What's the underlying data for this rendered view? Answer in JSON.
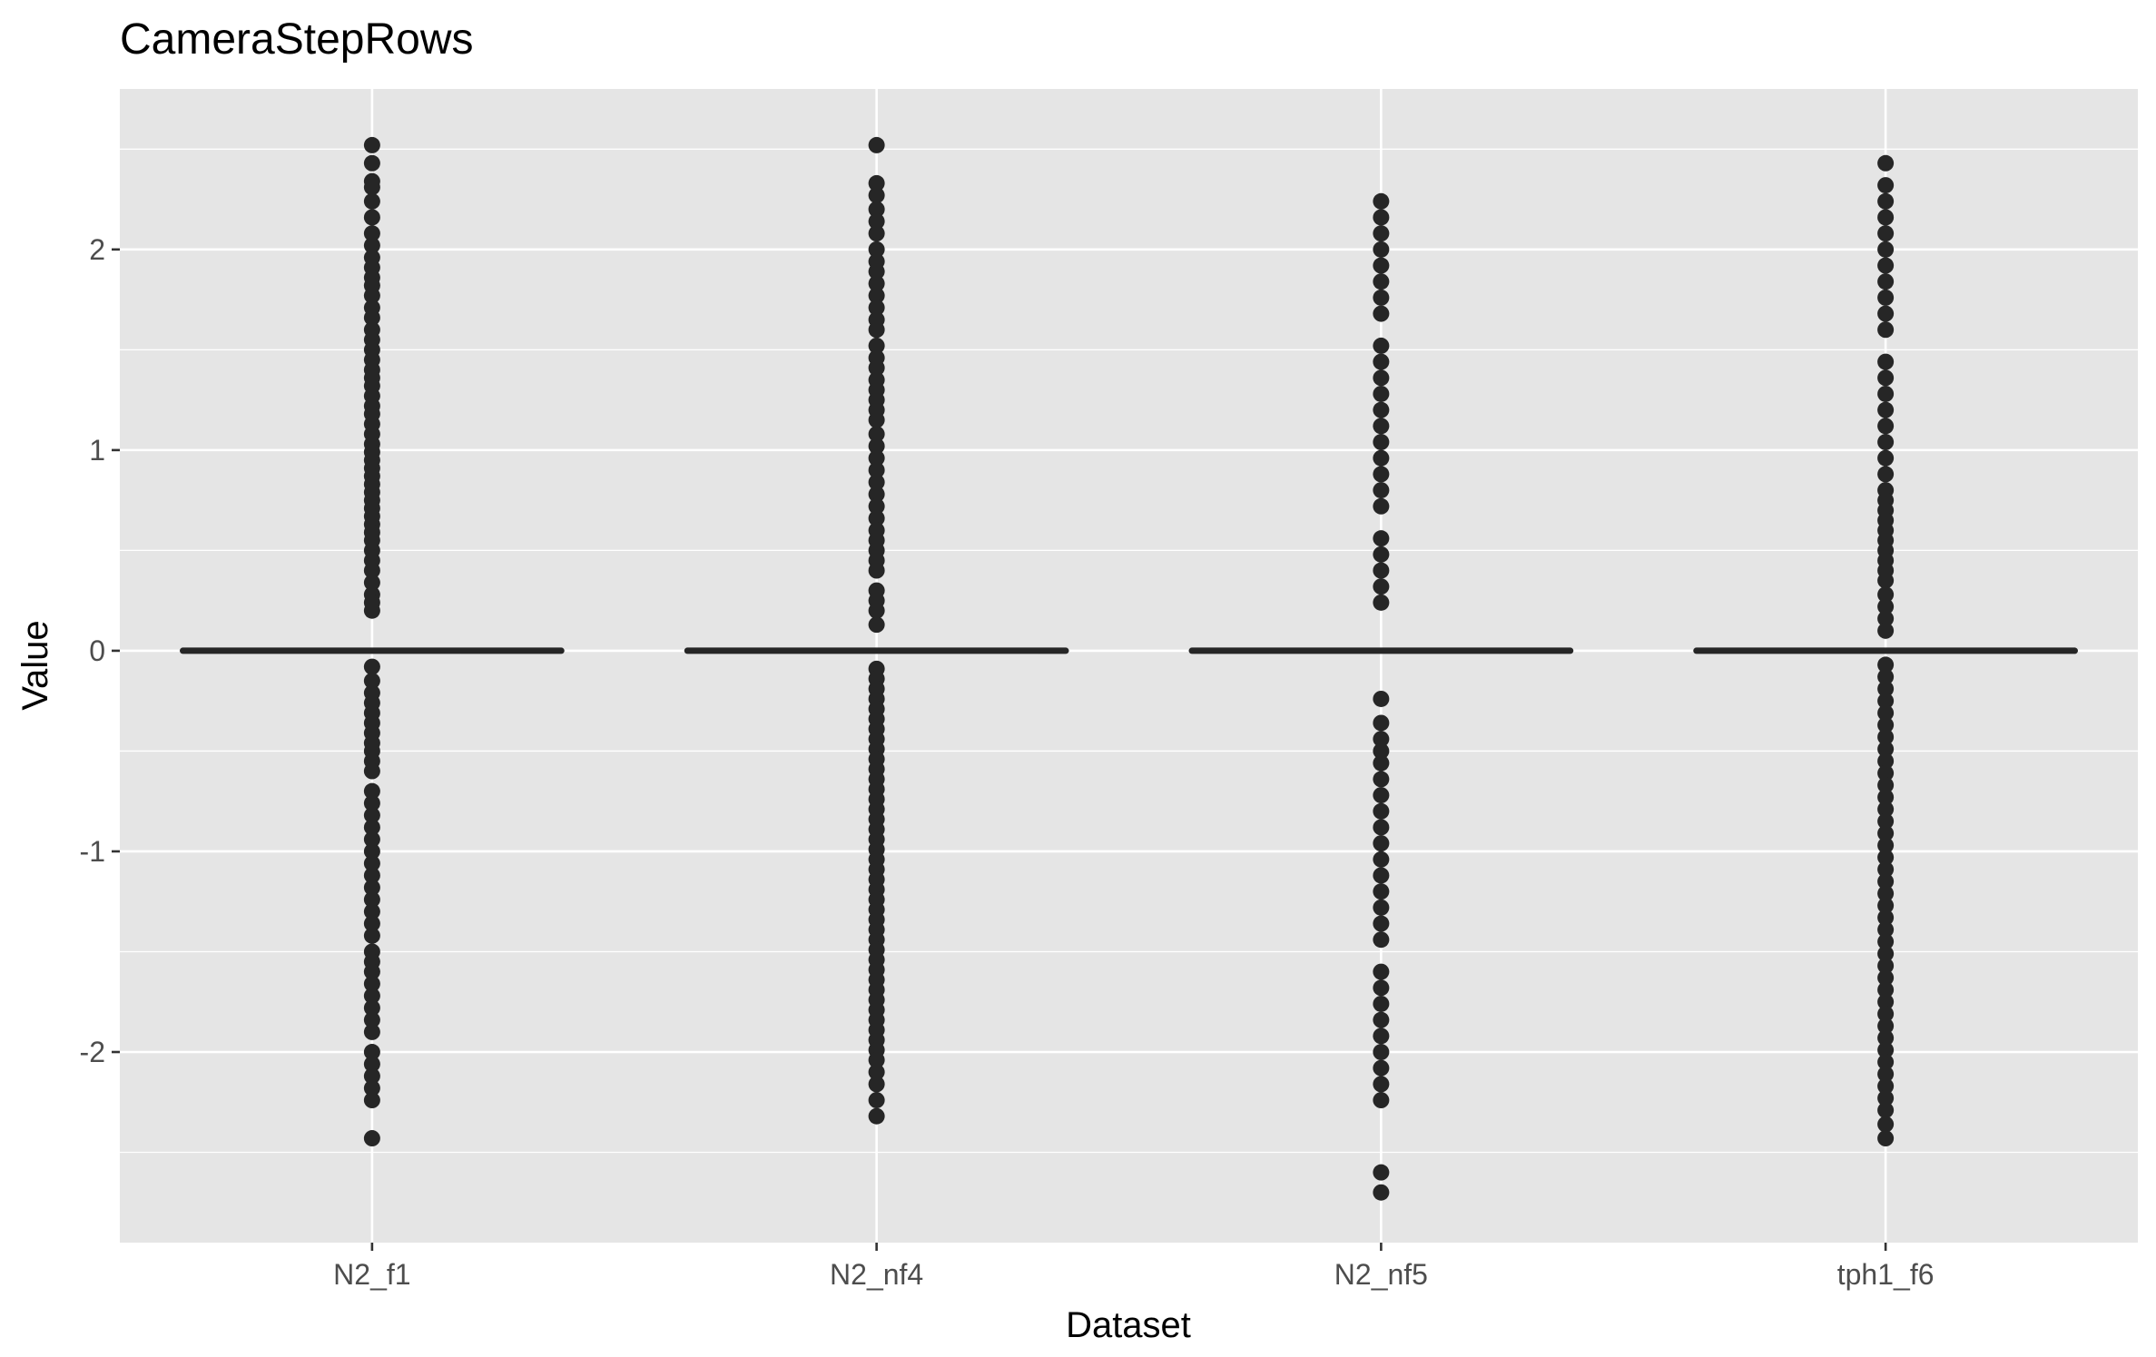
{
  "chart_data": {
    "type": "boxplot",
    "title": "CameraStepRows",
    "xlabel": "Dataset",
    "ylabel": "Value",
    "categories": [
      "N2_f1",
      "N2_nf4",
      "N2_nf5",
      "tph1_f6"
    ],
    "ylim": [
      -2.95,
      2.8
    ],
    "yticks": [
      -2,
      -1,
      0,
      1,
      2
    ],
    "yticklabels": [
      "-2",
      "-1",
      "0",
      "1",
      "2"
    ],
    "grid": true,
    "legend": "none",
    "colors": {
      "panel_background": "#e5e5e5",
      "grid_line": "#ffffff",
      "point": "#262626",
      "box_line": "#262626"
    },
    "series": [
      {
        "category": "N2_f1",
        "median": 0,
        "q1": 0,
        "q3": 0,
        "outliers": [
          2.52,
          2.43,
          2.34,
          2.31,
          2.24,
          2.16,
          2.08,
          2.02,
          1.96,
          1.91,
          1.86,
          1.82,
          1.77,
          1.71,
          1.66,
          1.6,
          1.55,
          1.5,
          1.45,
          1.4,
          1.36,
          1.32,
          1.27,
          1.22,
          1.18,
          1.13,
          1.08,
          1.03,
          0.99,
          0.95,
          0.91,
          0.87,
          0.83,
          0.79,
          0.75,
          0.71,
          0.67,
          0.63,
          0.59,
          0.55,
          0.5,
          0.45,
          0.4,
          0.34,
          0.28,
          0.24,
          0.2,
          -0.08,
          -0.15,
          -0.21,
          -0.26,
          -0.31,
          -0.36,
          -0.41,
          -0.46,
          -0.5,
          -0.55,
          -0.6,
          -0.7,
          -0.76,
          -0.82,
          -0.88,
          -0.94,
          -1.0,
          -1.06,
          -1.12,
          -1.18,
          -1.24,
          -1.3,
          -1.36,
          -1.42,
          -1.5,
          -1.55,
          -1.6,
          -1.66,
          -1.72,
          -1.78,
          -1.84,
          -1.9,
          -2.0,
          -2.06,
          -2.12,
          -2.18,
          -2.24,
          -2.43
        ]
      },
      {
        "category": "N2_nf4",
        "median": 0,
        "q1": 0,
        "q3": 0,
        "outliers": [
          2.52,
          2.33,
          2.27,
          2.2,
          2.14,
          2.08,
          2.0,
          1.94,
          1.89,
          1.83,
          1.77,
          1.71,
          1.65,
          1.6,
          1.52,
          1.46,
          1.41,
          1.35,
          1.3,
          1.25,
          1.2,
          1.15,
          1.08,
          1.02,
          0.96,
          0.9,
          0.84,
          0.78,
          0.72,
          0.66,
          0.6,
          0.55,
          0.5,
          0.45,
          0.4,
          0.3,
          0.25,
          0.2,
          0.13,
          -0.09,
          -0.14,
          -0.19,
          -0.24,
          -0.29,
          -0.34,
          -0.39,
          -0.44,
          -0.49,
          -0.54,
          -0.59,
          -0.64,
          -0.69,
          -0.74,
          -0.79,
          -0.84,
          -0.89,
          -0.94,
          -0.99,
          -1.04,
          -1.09,
          -1.14,
          -1.19,
          -1.24,
          -1.29,
          -1.34,
          -1.39,
          -1.44,
          -1.49,
          -1.54,
          -1.59,
          -1.64,
          -1.69,
          -1.74,
          -1.79,
          -1.84,
          -1.89,
          -1.94,
          -1.99,
          -2.04,
          -2.1,
          -2.16,
          -2.24,
          -2.32
        ]
      },
      {
        "category": "N2_nf5",
        "median": 0,
        "q1": 0,
        "q3": 0,
        "outliers": [
          2.24,
          2.16,
          2.08,
          2.0,
          1.92,
          1.84,
          1.76,
          1.68,
          1.52,
          1.44,
          1.36,
          1.28,
          1.2,
          1.12,
          1.04,
          0.96,
          0.88,
          0.8,
          0.72,
          0.56,
          0.48,
          0.4,
          0.32,
          0.24,
          -0.24,
          -0.36,
          -0.44,
          -0.5,
          -0.56,
          -0.64,
          -0.72,
          -0.8,
          -0.88,
          -0.96,
          -1.04,
          -1.12,
          -1.2,
          -1.28,
          -1.36,
          -1.44,
          -1.6,
          -1.68,
          -1.76,
          -1.84,
          -1.92,
          -2.0,
          -2.08,
          -2.16,
          -2.24,
          -2.6,
          -2.7
        ]
      },
      {
        "category": "tph1_f6",
        "median": 0,
        "q1": 0,
        "q3": 0,
        "outliers": [
          2.43,
          2.32,
          2.24,
          2.16,
          2.08,
          2.0,
          1.92,
          1.84,
          1.76,
          1.68,
          1.6,
          1.44,
          1.36,
          1.28,
          1.2,
          1.12,
          1.04,
          0.96,
          0.88,
          0.8,
          0.75,
          0.7,
          0.65,
          0.6,
          0.55,
          0.5,
          0.45,
          0.4,
          0.35,
          0.28,
          0.22,
          0.16,
          0.1,
          -0.07,
          -0.13,
          -0.19,
          -0.25,
          -0.31,
          -0.37,
          -0.43,
          -0.49,
          -0.55,
          -0.61,
          -0.67,
          -0.73,
          -0.79,
          -0.85,
          -0.91,
          -0.97,
          -1.03,
          -1.09,
          -1.15,
          -1.21,
          -1.27,
          -1.33,
          -1.39,
          -1.45,
          -1.51,
          -1.57,
          -1.63,
          -1.69,
          -1.75,
          -1.81,
          -1.87,
          -1.93,
          -1.99,
          -2.05,
          -2.11,
          -2.17,
          -2.23,
          -2.29,
          -2.36,
          -2.43
        ]
      }
    ]
  }
}
